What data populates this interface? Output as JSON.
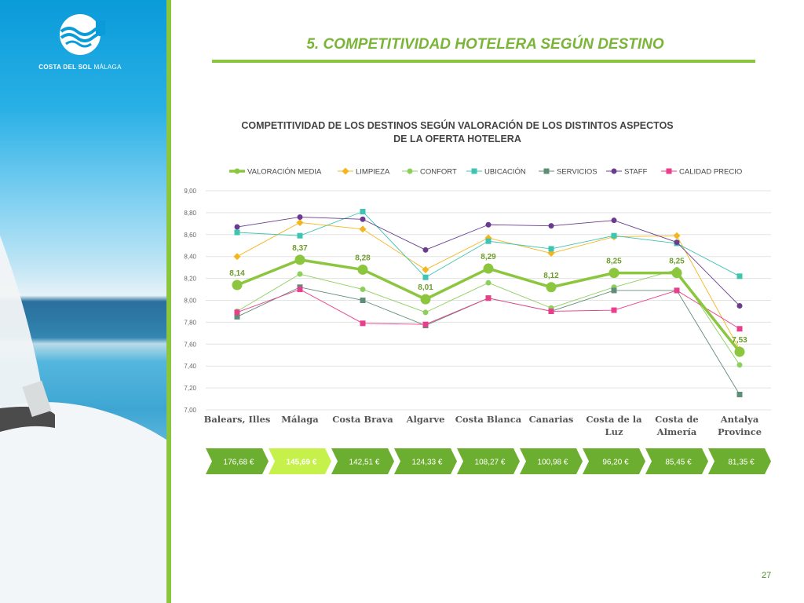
{
  "page": {
    "title": "5. COMPETITIVIDAD HOTELERA SEGÚN DESTINO",
    "number": "27"
  },
  "logo": {
    "brand": "COSTA DEL SOL",
    "city": "MÁLAGA"
  },
  "chart_data": {
    "type": "line",
    "title_lines": [
      "COMPETITIVIDAD DE LOS DESTINOS SEGÚN VALORACIÓN DE LOS DISTINTOS ASPECTOS",
      "DE LA OFERTA HOTELERA"
    ],
    "categories": [
      "Balears, Illes",
      "Málaga",
      "Costa Brava",
      "Algarve",
      "Costa Blanca",
      "Canarias",
      "Costa de la Luz",
      "Costa de Almería",
      "Antalya Province"
    ],
    "y_ticks": [
      "7,00",
      "7,20",
      "7,40",
      "7,60",
      "7,80",
      "8,00",
      "8,20",
      "8,40",
      "8,60",
      "8,80",
      "9,00"
    ],
    "ylim": [
      7.0,
      9.0
    ],
    "grid": true,
    "legend_position": "top",
    "series": [
      {
        "name": "VALORACIÓN MEDIA",
        "color": "#8cc63f",
        "marker": "circle-large",
        "values": [
          8.14,
          8.37,
          8.28,
          8.01,
          8.29,
          8.12,
          8.25,
          8.25,
          7.53
        ],
        "labels": [
          "8,14",
          "8,37",
          "8,28",
          "8,01",
          "8,29",
          "8,12",
          "8,25",
          "8,25",
          "7,53"
        ]
      },
      {
        "name": "LIMPIEZA",
        "color": "#f5b61d",
        "marker": "diamond",
        "values": [
          8.4,
          8.71,
          8.65,
          8.28,
          8.57,
          8.43,
          8.58,
          8.59,
          7.55
        ]
      },
      {
        "name": "CONFORT",
        "color": "#8dcf5c",
        "marker": "circle",
        "values": [
          7.9,
          8.24,
          8.1,
          7.89,
          8.16,
          7.93,
          8.12,
          8.28,
          7.41
        ]
      },
      {
        "name": "UBICACIÓN",
        "color": "#3ec4b1",
        "marker": "square",
        "values": [
          8.62,
          8.59,
          8.81,
          8.21,
          8.54,
          8.47,
          8.59,
          8.52,
          8.22
        ]
      },
      {
        "name": "SERVICIOS",
        "color": "#5f8e76",
        "marker": "square",
        "values": [
          7.85,
          8.12,
          8.0,
          7.77,
          8.02,
          7.9,
          8.09,
          8.09,
          7.14
        ]
      },
      {
        "name": "STAFF",
        "color": "#6a3b8f",
        "marker": "circle",
        "values": [
          8.67,
          8.76,
          8.74,
          8.46,
          8.69,
          8.68,
          8.73,
          8.53,
          7.95
        ]
      },
      {
        "name": "CALIDAD PRECIO",
        "color": "#e83e8c",
        "marker": "square",
        "values": [
          7.89,
          8.1,
          7.79,
          7.78,
          8.02,
          7.9,
          7.91,
          8.09,
          7.74
        ]
      }
    ],
    "prices": [
      "176,68 €",
      "145,69 €",
      "142,51 €",
      "124,33 €",
      "108,27 €",
      "100,98 €",
      "96,20 €",
      "85,45 €",
      "81,35 €"
    ],
    "highlight_index": 1,
    "price_color": "#6cae2f",
    "highlight_color": "#c6f14a"
  }
}
